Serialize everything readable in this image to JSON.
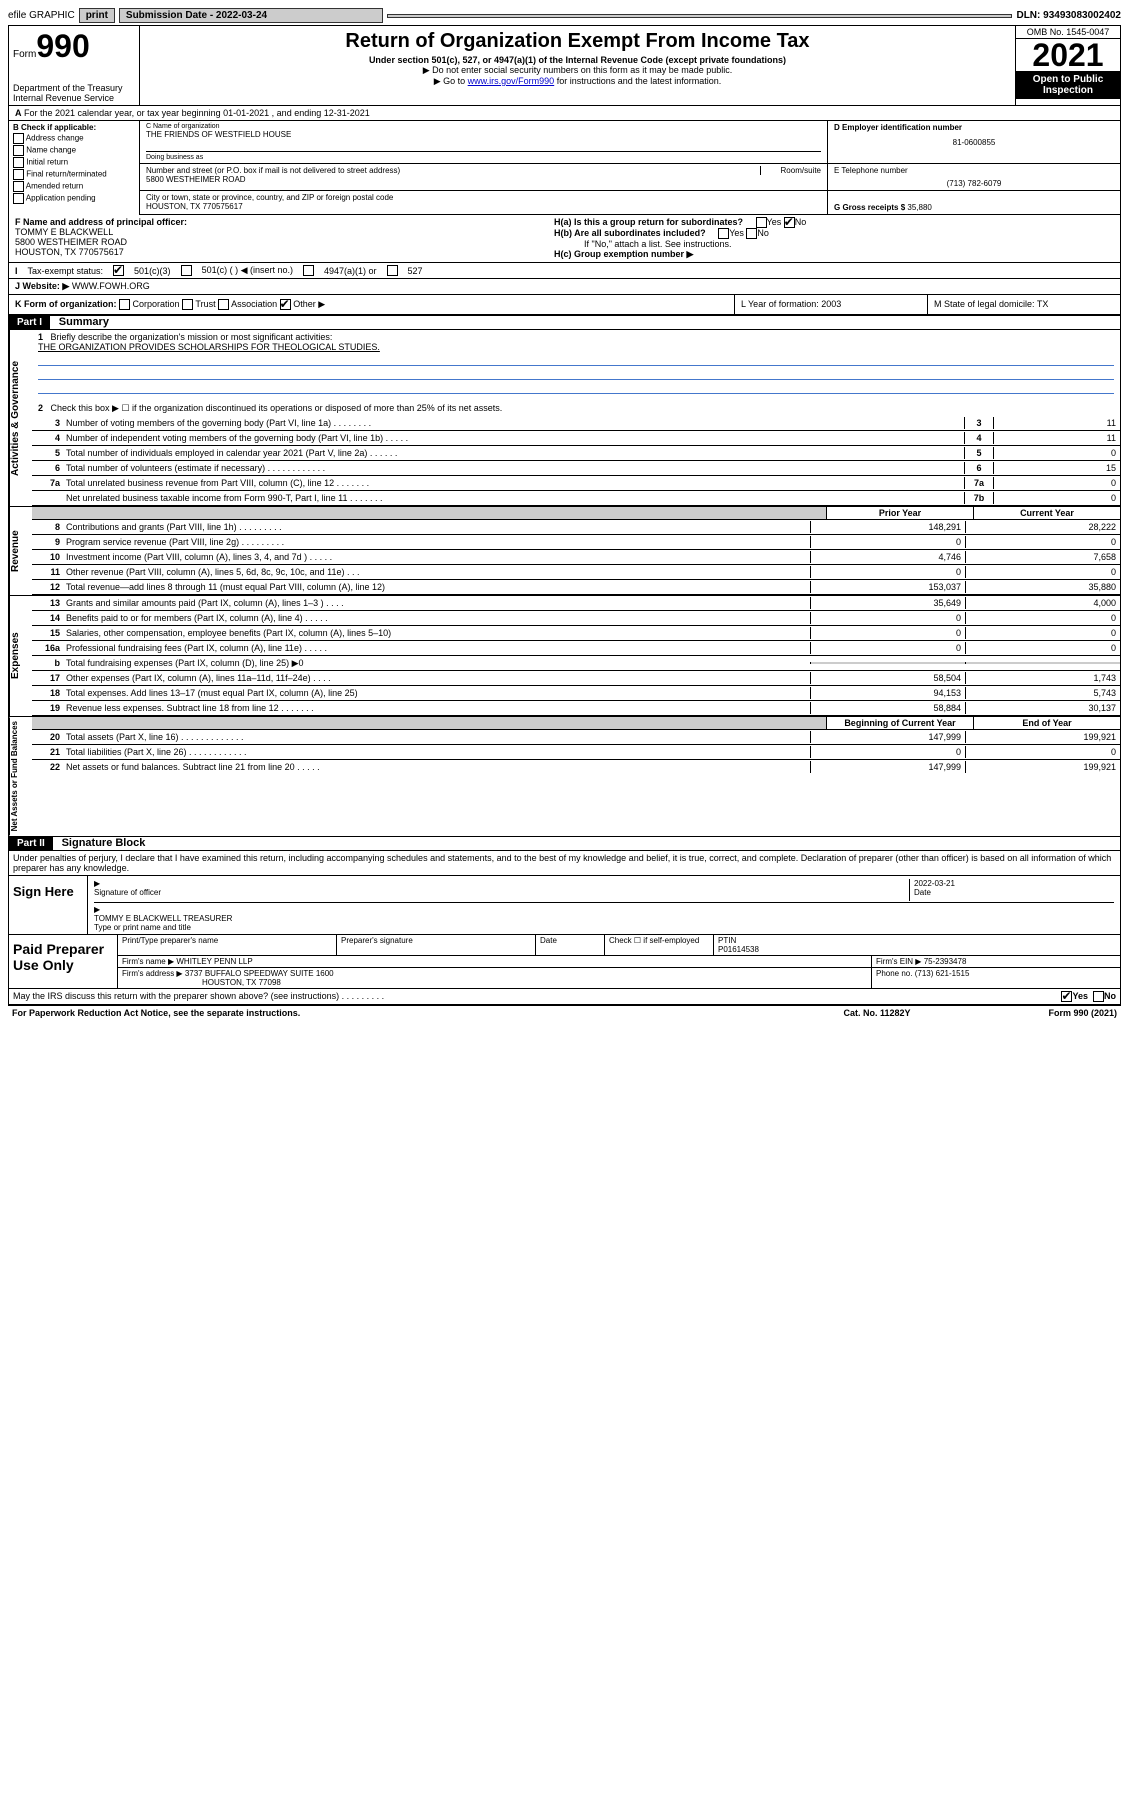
{
  "topbar": {
    "efile": "efile GRAPHIC",
    "print": "print",
    "sub_label": "Submission Date - 2022-03-24",
    "dln": "DLN: 93493083002402"
  },
  "header": {
    "form_label": "Form",
    "form_num": "990",
    "title": "Return of Organization Exempt From Income Tax",
    "subtitle": "Under section 501(c), 527, or 4947(a)(1) of the Internal Revenue Code (except private foundations)",
    "note1": "▶ Do not enter social security numbers on this form as it may be made public.",
    "note2": "▶ Go to",
    "link": "www.irs.gov/Form990",
    "note2b": "for instructions and the latest information.",
    "dept": "Department of the Treasury",
    "irs": "Internal Revenue Service",
    "omb": "OMB No. 1545-0047",
    "year": "2021",
    "open1": "Open to Public",
    "open2": "Inspection"
  },
  "row_a": "For the 2021 calendar year, or tax year beginning 01-01-2021   , and ending 12-31-2021",
  "col_b": {
    "header": "B Check if applicable:",
    "items": [
      "Address change",
      "Name change",
      "Initial return",
      "Final return/terminated",
      "Amended return",
      "Application pending"
    ]
  },
  "name": {
    "c_label": "C Name of organization",
    "org": "THE FRIENDS OF WESTFIELD HOUSE",
    "dba_label": "Doing business as",
    "street_label": "Number and street (or P.O. box if mail is not delivered to street address)",
    "room_label": "Room/suite",
    "street": "5800 WESTHEIMER ROAD",
    "city_label": "City or town, state or province, country, and ZIP or foreign postal code",
    "city": "HOUSTON, TX  770575617"
  },
  "right_box": {
    "d_label": "D Employer identification number",
    "ein": "81-0600855",
    "e_label": "E Telephone number",
    "phone": "(713) 782-6079",
    "g_label": "G Gross receipts $",
    "g_val": "35,880"
  },
  "row_f": {
    "label": "F Name and address of principal officer:",
    "name": "TOMMY E BLACKWELL",
    "addr1": "5800 WESTHEIMER ROAD",
    "addr2": "HOUSTON, TX  770575617"
  },
  "row_h": {
    "ha": "H(a)  Is this a group return for subordinates?",
    "hb": "H(b)  Are all subordinates included?",
    "hb_note": "If \"No,\" attach a list. See instructions.",
    "hc": "H(c)  Group exemption number ▶"
  },
  "row_i": {
    "label": "Tax-exempt status:",
    "opt1": "501(c)(3)",
    "opt2": "501(c) (  ) ◀ (insert no.)",
    "opt3": "4947(a)(1) or",
    "opt4": "527"
  },
  "row_j": {
    "label": "Website: ▶",
    "val": "WWW.FOWH.ORG"
  },
  "row_k": {
    "label": "K Form of organization:",
    "opts": [
      "Corporation",
      "Trust",
      "Association",
      "Other ▶"
    ]
  },
  "row_l": "L Year of formation: 2003",
  "row_m": "M State of legal domicile: TX",
  "part1": {
    "header": "Part I",
    "title": "Summary",
    "vtab_gov": "Activities & Governance",
    "vtab_rev": "Revenue",
    "vtab_exp": "Expenses",
    "vtab_net": "Net Assets or Fund Balances",
    "line1": "Briefly describe the organization's mission or most significant activities:",
    "mission": "THE ORGANIZATION PROVIDES SCHOLARSHIPS FOR THEOLOGICAL STUDIES.",
    "line2": "Check this box ▶ ☐  if the organization discontinued its operations or disposed of more than 25% of its net assets.",
    "lines_gov": [
      {
        "n": "3",
        "d": "Number of voting members of the governing body (Part VI, line 1a)   .   .   .   .   .   .   .   .",
        "b": "3",
        "v": "11"
      },
      {
        "n": "4",
        "d": "Number of independent voting members of the governing body (Part VI, line 1b)  .   .   .   .   .",
        "b": "4",
        "v": "11"
      },
      {
        "n": "5",
        "d": "Total number of individuals employed in calendar year 2021 (Part V, line 2a)  .   .   .   .   .   .",
        "b": "5",
        "v": "0"
      },
      {
        "n": "6",
        "d": "Total number of volunteers (estimate if necessary)  .   .   .   .   .   .   .   .   .   .   .   .",
        "b": "6",
        "v": "15"
      },
      {
        "n": "7a",
        "d": "Total unrelated business revenue from Part VIII, column (C), line 12  .   .   .   .   .   .   .",
        "b": "7a",
        "v": "0"
      },
      {
        "n": "",
        "d": "Net unrelated business taxable income from Form 990-T, Part I, line 11  .   .   .   .   .   .   .",
        "b": "7b",
        "v": "0"
      }
    ],
    "col_prior": "Prior Year",
    "col_current": "Current Year",
    "lines_rev": [
      {
        "n": "8",
        "d": "Contributions and grants (Part VIII, line 1h)   .   .   .   .   .   .   .   .   .",
        "v1": "148,291",
        "v2": "28,222"
      },
      {
        "n": "9",
        "d": "Program service revenue (Part VIII, line 2g)   .   .   .   .   .   .   .   .   .",
        "v1": "0",
        "v2": "0"
      },
      {
        "n": "10",
        "d": "Investment income (Part VIII, column (A), lines 3, 4, and 7d )  .   .   .   .   .",
        "v1": "4,746",
        "v2": "7,658"
      },
      {
        "n": "11",
        "d": "Other revenue (Part VIII, column (A), lines 5, 6d, 8c, 9c, 10c, and 11e)   .   .   .",
        "v1": "0",
        "v2": "0"
      },
      {
        "n": "12",
        "d": "Total revenue—add lines 8 through 11 (must equal Part VIII, column (A), line 12)",
        "v1": "153,037",
        "v2": "35,880"
      }
    ],
    "lines_exp": [
      {
        "n": "13",
        "d": "Grants and similar amounts paid (Part IX, column (A), lines 1–3 )  .   .   .   .",
        "v1": "35,649",
        "v2": "4,000"
      },
      {
        "n": "14",
        "d": "Benefits paid to or for members (Part IX, column (A), line 4)   .   .   .   .   .",
        "v1": "0",
        "v2": "0"
      },
      {
        "n": "15",
        "d": "Salaries, other compensation, employee benefits (Part IX, column (A), lines 5–10)",
        "v1": "0",
        "v2": "0"
      },
      {
        "n": "16a",
        "d": "Professional fundraising fees (Part IX, column (A), line 11e)   .   .   .   .   .",
        "v1": "0",
        "v2": "0"
      },
      {
        "n": "b",
        "d": "Total fundraising expenses (Part IX, column (D), line 25) ▶0",
        "v1": "",
        "v2": "",
        "shade": true
      },
      {
        "n": "17",
        "d": "Other expenses (Part IX, column (A), lines 11a–11d, 11f–24e)  .   .   .   .",
        "v1": "58,504",
        "v2": "1,743"
      },
      {
        "n": "18",
        "d": "Total expenses. Add lines 13–17 (must equal Part IX, column (A), line 25)",
        "v1": "94,153",
        "v2": "5,743"
      },
      {
        "n": "19",
        "d": "Revenue less expenses. Subtract line 18 from line 12  .   .   .   .   .   .   .",
        "v1": "58,884",
        "v2": "30,137"
      }
    ],
    "col_begin": "Beginning of Current Year",
    "col_end": "End of Year",
    "lines_net": [
      {
        "n": "20",
        "d": "Total assets (Part X, line 16)  .   .   .   .   .   .   .   .   .   .   .   .   .",
        "v1": "147,999",
        "v2": "199,921"
      },
      {
        "n": "21",
        "d": "Total liabilities (Part X, line 26)  .   .   .   .   .   .   .   .   .   .   .   .",
        "v1": "0",
        "v2": "0"
      },
      {
        "n": "22",
        "d": "Net assets or fund balances. Subtract line 21 from line 20  .   .   .   .   .",
        "v1": "147,999",
        "v2": "199,921"
      }
    ]
  },
  "part2": {
    "header": "Part II",
    "title": "Signature Block",
    "disclaimer": "Under penalties of perjury, I declare that I have examined this return, including accompanying schedules and statements, and to the best of my knowledge and belief, it is true, correct, and complete. Declaration of preparer (other than officer) is based on all information of which preparer has any knowledge.",
    "sign_here": "Sign Here",
    "sig_officer": "Signature of officer",
    "sig_date_label": "Date",
    "sig_date": "2022-03-21",
    "sig_name": "TOMMY E BLACKWELL TREASURER",
    "sig_name_label": "Type or print name and title",
    "paid_label": "Paid Preparer Use Only",
    "prep_name_label": "Print/Type preparer's name",
    "prep_sig_label": "Preparer's signature",
    "prep_date_label": "Date",
    "prep_check": "Check ☐ if self-employed",
    "ptin_label": "PTIN",
    "ptin": "P01614538",
    "firm_name_label": "Firm's name    ▶",
    "firm_name": "WHITLEY PENN LLP",
    "firm_ein_label": "Firm's EIN ▶",
    "firm_ein": "75-2393478",
    "firm_addr_label": "Firm's address ▶",
    "firm_addr1": "3737 BUFFALO SPEEDWAY SUITE 1600",
    "firm_addr2": "HOUSTON, TX  77098",
    "firm_phone_label": "Phone no.",
    "firm_phone": "(713) 621-1515"
  },
  "footer": {
    "may": "May the IRS discuss this return with the preparer shown above? (see instructions)   .   .   .   .   .   .   .   .   .",
    "yes": "Yes",
    "no": "No",
    "paperwork": "For Paperwork Reduction Act Notice, see the separate instructions.",
    "cat": "Cat. No. 11282Y",
    "form": "Form 990 (2021)"
  },
  "colors": {
    "black": "#000000",
    "shade": "#cccccc",
    "link": "#0000cc",
    "rule": "#4477cc"
  }
}
